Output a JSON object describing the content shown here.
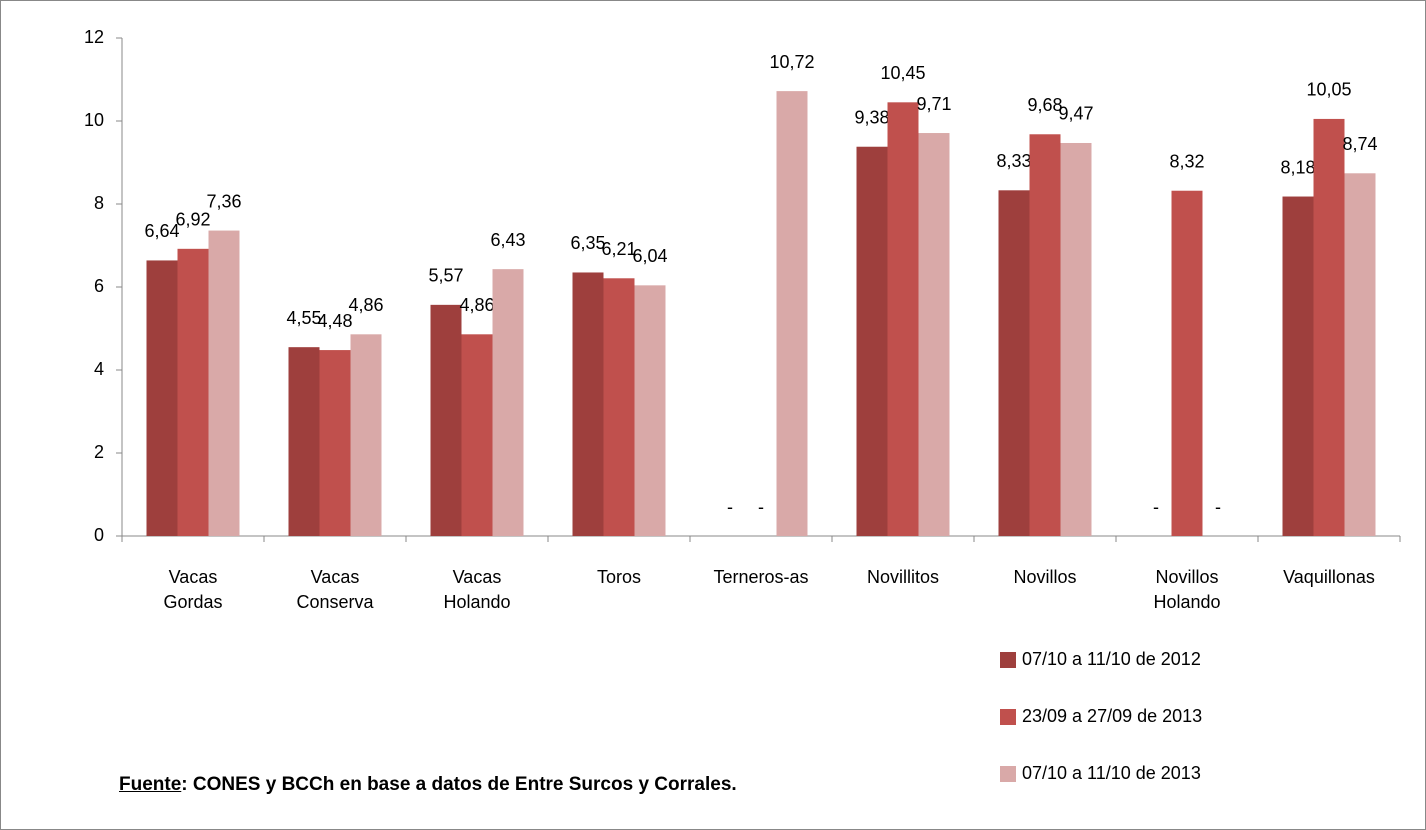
{
  "chart_data": {
    "type": "bar",
    "categories": [
      "Vacas\nGordas",
      "Vacas\nConserva",
      "Vacas\nHolando",
      "Toros",
      "Terneros-as",
      "Novillitos",
      "Novillos",
      "Novillos\nHolando",
      "Vaquillonas"
    ],
    "series": [
      {
        "name": "07/10 a 11/10 de 2012",
        "color": "#9e3f3d",
        "values": [
          6.64,
          4.55,
          5.57,
          6.35,
          null,
          9.38,
          8.33,
          null,
          8.18
        ],
        "value_labels": [
          "6,64",
          "4,55",
          "5,57",
          "6,35",
          "-",
          "9,38",
          "8,33",
          "-",
          "8,18"
        ]
      },
      {
        "name": "23/09 a 27/09 de 2013",
        "color": "#c0504d",
        "values": [
          6.92,
          4.48,
          4.86,
          6.21,
          null,
          10.45,
          9.68,
          8.32,
          10.05
        ],
        "value_labels": [
          "6,92",
          "4,48",
          "4,86",
          "6,21",
          "-",
          "10,45",
          "9,68",
          "8,32",
          "10,05"
        ]
      },
      {
        "name": "07/10 a 11/10 de 2013",
        "color": "#d9a9a8",
        "values": [
          7.36,
          4.86,
          6.43,
          6.04,
          10.72,
          9.71,
          9.47,
          null,
          8.74
        ],
        "value_labels": [
          "7,36",
          "4,86",
          "6,43",
          "6,04",
          "10,72",
          "9,71",
          "9,47",
          "-",
          "8,74"
        ]
      }
    ],
    "ylim": [
      0,
      12
    ],
    "yticks": [
      0,
      2,
      4,
      6,
      8,
      10,
      12
    ],
    "grid": false,
    "legend": "bottom-right",
    "source_label": "Fuente",
    "source_text": ": CONES y BCCh en base a datos de Entre Surcos y Corrales."
  }
}
